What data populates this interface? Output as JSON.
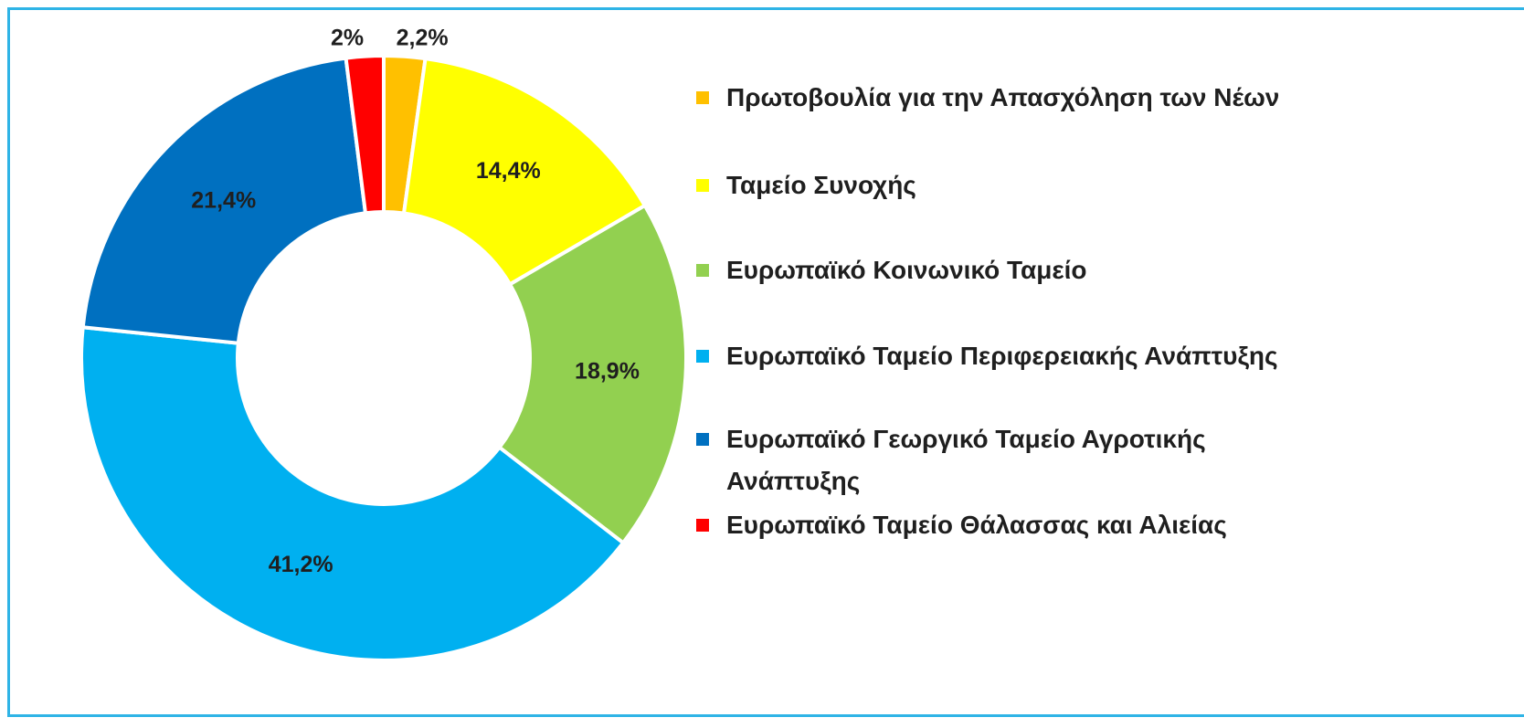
{
  "chart_data": {
    "type": "donut",
    "categories": [
      "Πρωτοβουλία για την Απασχόληση των Νέων",
      "Ταμείο Συνοχής",
      "Ευρωπαϊκό Κοινωνικό Ταμείο",
      "Ευρωπαϊκό Ταμείο  Περιφερειακής Ανάπτυξης",
      "Ευρωπαϊκό Γεωργικό Ταμείο Αγροτικής Ανάπτυξης",
      "Ευρωπαϊκό Ταμείο Θάλασσας και Αλιείας"
    ],
    "values": [
      2.2,
      14.4,
      18.9,
      41.2,
      21.4,
      2
    ],
    "value_labels": [
      "2,2%",
      "14,4%",
      "18,9%",
      "41,2%",
      "21,4%",
      "2%"
    ],
    "colors": [
      "#ffc000",
      "#ffff00",
      "#92d050",
      "#00b0f0",
      "#0070c0",
      "#ff0000"
    ],
    "legend": "right"
  }
}
